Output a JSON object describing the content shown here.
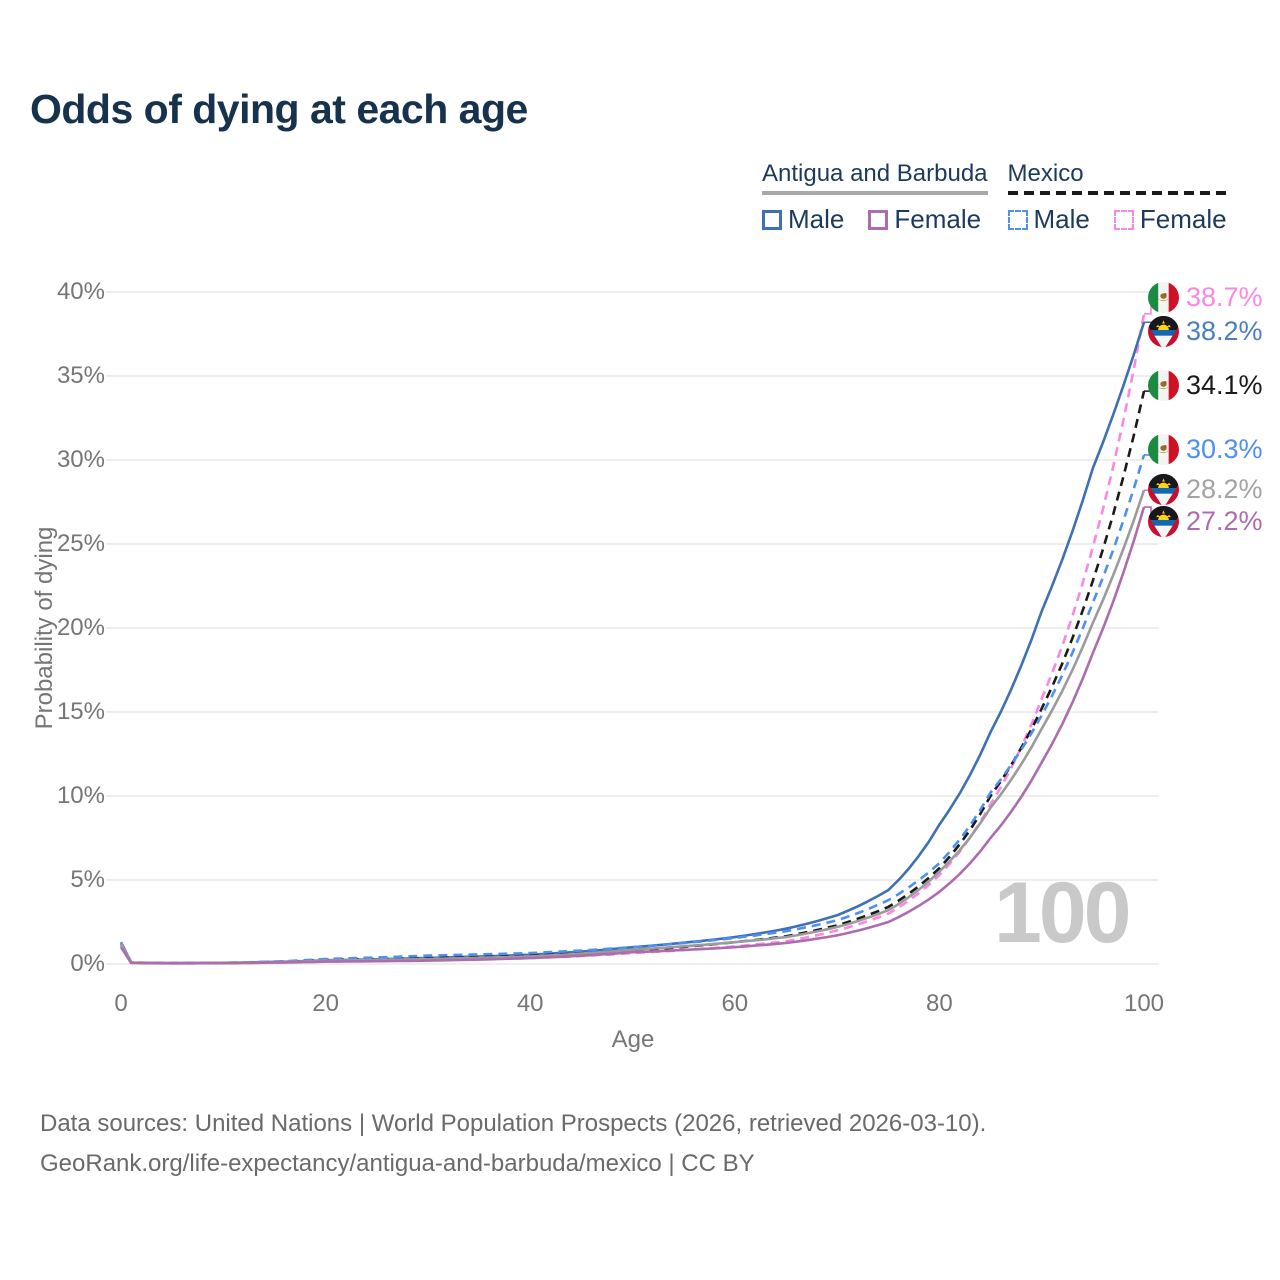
{
  "title": "Odds of dying at each age",
  "watermark": "100",
  "legend": {
    "groups": [
      {
        "label": "Antigua and Barbuda",
        "style": "solid",
        "rule_color": "#a8a8a8",
        "items": [
          {
            "label": "Male",
            "color": "#3e70b5"
          },
          {
            "label": "Female",
            "color": "#ad6cae"
          }
        ]
      },
      {
        "label": "Mexico",
        "style": "dashed",
        "rule_color": "#1a1a1a",
        "items": [
          {
            "label": "Male",
            "color": "#4d8ff2"
          },
          {
            "label": "Female",
            "color": "#fb86e4"
          }
        ]
      }
    ]
  },
  "axes": {
    "x": {
      "label": "Age",
      "min": 0,
      "max": 100,
      "tick_values": [
        0,
        20,
        40,
        60,
        80,
        100
      ],
      "tick_labels": [
        "0",
        "20",
        "40",
        "60",
        "80",
        "100"
      ]
    },
    "y": {
      "label": "Probability of dying",
      "min": 0,
      "max": 40,
      "tick_values": [
        0,
        5,
        10,
        15,
        20,
        25,
        30,
        35,
        40
      ],
      "tick_labels": [
        "0%",
        "5%",
        "10%",
        "15%",
        "20%",
        "25%",
        "30%",
        "35%",
        "40%"
      ]
    }
  },
  "chart_data": {
    "type": "line",
    "title": "Odds of dying at each age",
    "xlabel": "Age",
    "ylabel": "Probability of dying",
    "x_range": [
      0,
      100
    ],
    "y_range_percent": [
      0,
      40
    ],
    "grid": "horizontal",
    "legend_position": "top-right",
    "ages": [
      0,
      1,
      5,
      10,
      20,
      30,
      40,
      50,
      60,
      65,
      70,
      75,
      80,
      85,
      90,
      95,
      100
    ],
    "series": [
      {
        "name": "Mexico Female",
        "country": "Mexico",
        "sex": "Female",
        "flag": "mexico",
        "dash": true,
        "color": "#fb86e4",
        "end_value_percent": 38.7,
        "end_label": "38.7%",
        "label_color": "#fb86e4",
        "label_y_hint": 297,
        "values_percent": [
          1.1,
          0.07,
          0.04,
          0.05,
          0.15,
          0.22,
          0.35,
          0.65,
          1.05,
          1.35,
          2.0,
          3.0,
          5.3,
          9.5,
          15.8,
          24.8,
          38.7
        ]
      },
      {
        "name": "Antigua and Barbuda Male",
        "country": "Antigua and Barbuda",
        "sex": "Male",
        "flag": "antigua-and-barbuda",
        "dash": false,
        "color": "#3e70b5",
        "end_value_percent": 38.2,
        "end_label": "38.2%",
        "label_color": "#4a7dc4",
        "label_y_hint": 331,
        "values_percent": [
          1.3,
          0.09,
          0.05,
          0.07,
          0.22,
          0.36,
          0.55,
          1.0,
          1.6,
          2.1,
          2.9,
          4.4,
          8.3,
          13.8,
          21.0,
          29.5,
          38.2
        ]
      },
      {
        "name": "Mexico (both sexes)",
        "country": "Mexico",
        "sex": "Both",
        "flag": "mexico",
        "dash": true,
        "color": "#1a1a1a",
        "end_value_percent": 34.1,
        "end_label": "34.1%",
        "label_color": "#1a1a1a",
        "label_y_hint": 385,
        "values_percent": [
          1.2,
          0.08,
          0.05,
          0.06,
          0.25,
          0.35,
          0.5,
          0.8,
          1.3,
          1.65,
          2.3,
          3.4,
          5.7,
          10.0,
          15.2,
          22.8,
          34.1
        ]
      },
      {
        "name": "Mexico Male",
        "country": "Mexico",
        "sex": "Male",
        "flag": "mexico",
        "dash": true,
        "color": "#4d8ff2",
        "end_value_percent": 30.3,
        "end_label": "30.3%",
        "label_color": "#4d8ff2",
        "label_y_hint": 449,
        "values_percent": [
          1.3,
          0.09,
          0.05,
          0.07,
          0.3,
          0.5,
          0.65,
          1.0,
          1.55,
          1.95,
          2.6,
          3.8,
          6.0,
          10.2,
          14.8,
          21.5,
          30.3
        ]
      },
      {
        "name": "Antigua and Barbuda (both sexes)",
        "country": "Antigua and Barbuda",
        "sex": "Both",
        "flag": "antigua-and-barbuda",
        "dash": false,
        "color": "#9b9b9b",
        "end_value_percent": 28.2,
        "end_label": "28.2%",
        "label_color": "#a3a3a3",
        "label_y_hint": 489,
        "values_percent": [
          1.2,
          0.08,
          0.05,
          0.06,
          0.2,
          0.3,
          0.45,
          0.85,
          1.3,
          1.6,
          2.2,
          3.2,
          5.5,
          9.3,
          14.0,
          20.3,
          28.2
        ]
      },
      {
        "name": "Antigua and Barbuda Female",
        "country": "Antigua and Barbuda",
        "sex": "Female",
        "flag": "antigua-and-barbuda",
        "dash": false,
        "color": "#ad6cae",
        "end_value_percent": 27.2,
        "end_label": "27.2%",
        "label_color": "#ad6cae",
        "label_y_hint": 521,
        "values_percent": [
          1.0,
          0.06,
          0.04,
          0.05,
          0.14,
          0.2,
          0.35,
          0.7,
          1.0,
          1.25,
          1.7,
          2.5,
          4.3,
          7.5,
          12.0,
          18.5,
          27.2
        ]
      }
    ]
  },
  "footer": {
    "line1": "Data sources: United Nations | World Population Prospects (2026, retrieved 2026-03-10).",
    "line2": "GeoRank.org/life-expectancy/antigua-and-barbuda/mexico | CC BY"
  }
}
